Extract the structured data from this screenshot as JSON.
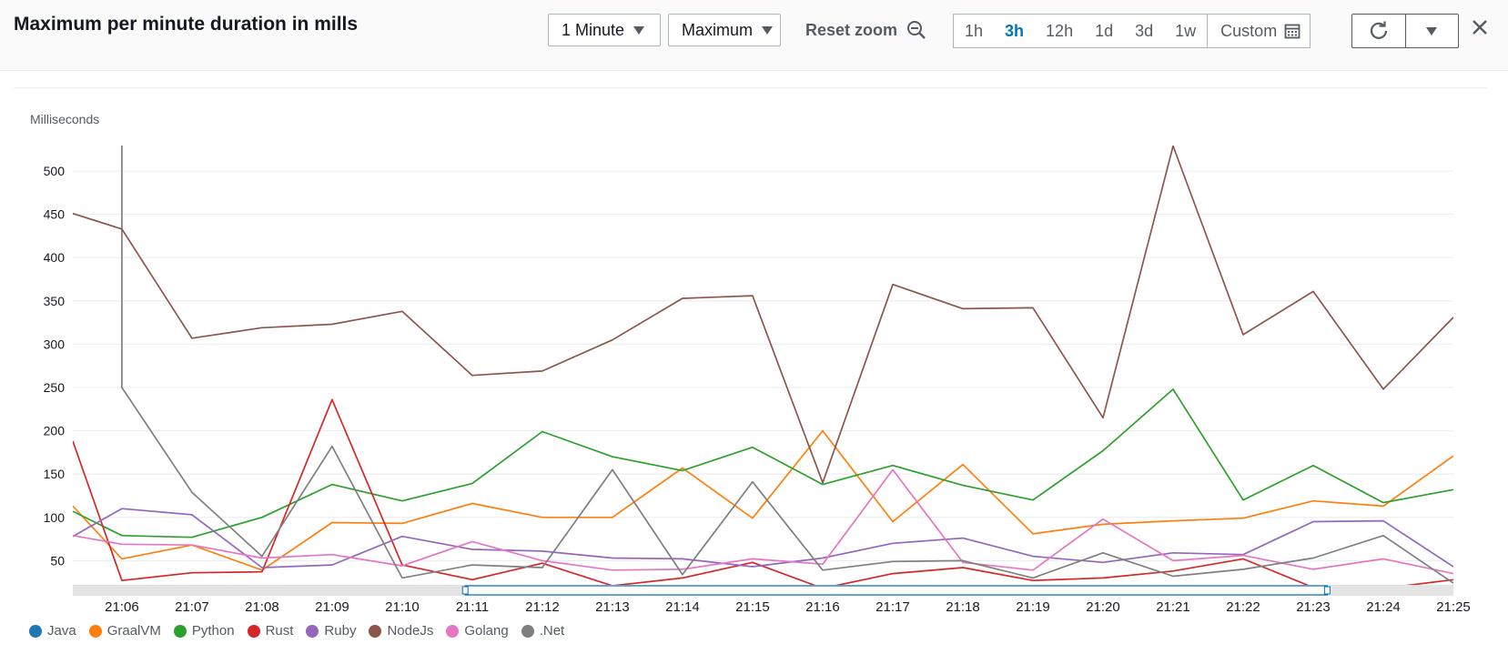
{
  "header": {
    "title": "Maximum per minute duration in mills",
    "period_label": "1 Minute",
    "stat_label": "Maximum",
    "reset_zoom_label": "Reset zoom",
    "time_ranges": [
      "1h",
      "3h",
      "12h",
      "1d",
      "3d",
      "1w"
    ],
    "active_range": "3h",
    "custom_label": "Custom"
  },
  "colors": {
    "Java": "#1f77b4",
    "GraalVM": "#ff7f0e",
    "Python": "#2ca02c",
    "Rust": "#d62728",
    "Ruby": "#9467bd",
    "NodeJs": "#8c564b",
    "Golang": "#e377c2",
    ".Net": "#7f7f7f"
  },
  "chart_data": {
    "type": "line",
    "title": "Maximum per minute duration in mills",
    "ylabel": "Milliseconds",
    "xlabel": "",
    "ylim": [
      22,
      540
    ],
    "yticks": [
      50,
      100,
      150,
      200,
      250,
      300,
      350,
      400,
      450,
      500
    ],
    "xlim": [
      5.3,
      25.0
    ],
    "xticks": [
      6,
      7,
      8,
      9,
      10,
      11,
      12,
      13,
      14,
      15,
      16,
      17,
      18,
      19,
      20,
      21,
      22,
      23,
      24,
      25
    ],
    "xtick_labels": [
      "21:06",
      "21:07",
      "21:08",
      "21:09",
      "21:10",
      "21:11",
      "21:12",
      "21:13",
      "21:14",
      "21:15",
      "21:16",
      "21:17",
      "21:18",
      "21:19",
      "21:20",
      "21:21",
      "21:22",
      "21:23",
      "21:24",
      "21:25"
    ],
    "zoom_range": [
      10.9,
      23.2
    ],
    "grid": true,
    "series": [
      {
        "name": "Java",
        "x": [],
        "values": []
      },
      {
        "name": "GraalVM",
        "x": [
          5.3,
          6,
          7,
          8,
          9,
          10,
          11,
          12,
          13,
          14,
          15,
          16,
          17,
          18,
          19,
          20,
          21,
          22,
          23,
          24,
          25
        ],
        "values": [
          113,
          52,
          68,
          39,
          94,
          93,
          116,
          100,
          100,
          157,
          99,
          200,
          95,
          161,
          81,
          92,
          96,
          99,
          119,
          113,
          171
        ]
      },
      {
        "name": "Python",
        "x": [
          5.3,
          6,
          7,
          8,
          9,
          10,
          11,
          12,
          13,
          14,
          15,
          16,
          17,
          18,
          19,
          20,
          21,
          22,
          23,
          24,
          25
        ],
        "values": [
          107,
          79,
          77,
          100,
          138,
          119,
          139,
          199,
          170,
          154,
          181,
          138,
          160,
          137,
          120,
          177,
          248,
          120,
          160,
          117,
          132
        ]
      },
      {
        "name": "Rust",
        "x": [
          5.3,
          6,
          7,
          8,
          9,
          10,
          11,
          12,
          13,
          14,
          15,
          16,
          17,
          18,
          19,
          20,
          21,
          22,
          23,
          24,
          25
        ],
        "values": [
          188,
          27,
          36,
          37,
          236,
          45,
          28,
          47,
          21,
          30,
          48,
          18,
          35,
          42,
          27,
          30,
          38,
          52,
          19,
          18,
          28
        ]
      },
      {
        "name": "Ruby",
        "x": [
          5.3,
          6,
          7,
          8,
          9,
          10,
          11,
          12,
          13,
          14,
          15,
          16,
          17,
          18,
          19,
          20,
          21,
          22,
          23,
          24,
          25
        ],
        "values": [
          78,
          110,
          103,
          42,
          45,
          78,
          63,
          61,
          53,
          52,
          43,
          53,
          70,
          76,
          55,
          48,
          59,
          57,
          95,
          96,
          43
        ]
      },
      {
        "name": "NodeJs",
        "x": [
          5.3,
          6,
          7,
          8,
          9,
          10,
          11,
          12,
          13,
          14,
          15,
          16,
          17,
          18,
          19,
          20,
          21,
          22,
          23,
          24,
          25
        ],
        "values": [
          451,
          433,
          307,
          319,
          323,
          338,
          264,
          269,
          305,
          353,
          356,
          140,
          369,
          341,
          342,
          215,
          529,
          311,
          361,
          248,
          331
        ]
      },
      {
        "name": "Golang",
        "x": [
          5.3,
          6,
          7,
          8,
          9,
          10,
          11,
          12,
          13,
          14,
          15,
          16,
          17,
          18,
          19,
          20,
          21,
          22,
          23,
          24,
          25
        ],
        "values": [
          79,
          69,
          68,
          53,
          57,
          44,
          72,
          50,
          39,
          40,
          52,
          46,
          155,
          48,
          39,
          98,
          50,
          56,
          40,
          52,
          35
        ]
      },
      {
        "name": ".Net",
        "x": [
          6,
          6,
          7,
          8,
          9,
          10,
          11,
          12,
          13,
          14,
          15,
          16,
          17,
          18,
          19,
          20,
          21,
          22,
          23,
          24,
          25
        ],
        "values": [
          533,
          250,
          129,
          55,
          182,
          30,
          45,
          42,
          155,
          34,
          141,
          39,
          49,
          50,
          30,
          59,
          32,
          40,
          53,
          79,
          24
        ]
      }
    ]
  }
}
